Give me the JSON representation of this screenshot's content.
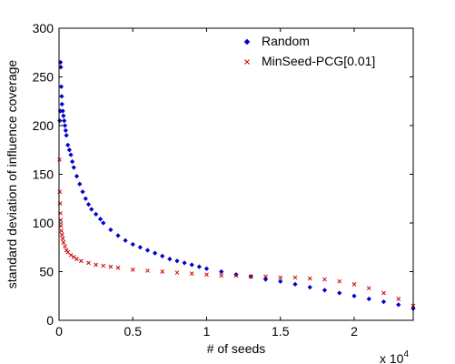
{
  "chart_data": {
    "type": "scatter",
    "title": "",
    "xlabel": "# of seeds",
    "ylabel": "standard deviation of influence coverage",
    "x_multiplier_label": "x 10",
    "x_multiplier_exp": "4",
    "xlim": [
      0,
      24000
    ],
    "ylim": [
      0,
      300
    ],
    "x_ticks": [
      0,
      5000,
      10000,
      15000,
      20000
    ],
    "x_tick_labels": [
      "0",
      "0.5",
      "1",
      "1.5",
      "2"
    ],
    "y_ticks": [
      0,
      50,
      100,
      150,
      200,
      250,
      300
    ],
    "y_tick_labels": [
      "0",
      "50",
      "100",
      "150",
      "200",
      "250",
      "300"
    ],
    "grid": false,
    "legend_position": "top-right",
    "series": [
      {
        "name": "Random",
        "color": "#0000cc",
        "marker": "diamond",
        "points": [
          [
            50,
            205
          ],
          [
            80,
            215
          ],
          [
            100,
            265
          ],
          [
            120,
            260
          ],
          [
            150,
            240
          ],
          [
            180,
            230
          ],
          [
            200,
            222
          ],
          [
            250,
            215
          ],
          [
            300,
            210
          ],
          [
            350,
            205
          ],
          [
            400,
            200
          ],
          [
            450,
            195
          ],
          [
            500,
            190
          ],
          [
            600,
            180
          ],
          [
            700,
            175
          ],
          [
            800,
            170
          ],
          [
            900,
            163
          ],
          [
            1000,
            157
          ],
          [
            1200,
            148
          ],
          [
            1400,
            140
          ],
          [
            1600,
            132
          ],
          [
            1800,
            125
          ],
          [
            2000,
            119
          ],
          [
            2200,
            114
          ],
          [
            2500,
            109
          ],
          [
            2800,
            104
          ],
          [
            3000,
            100
          ],
          [
            3500,
            93
          ],
          [
            4000,
            87
          ],
          [
            4500,
            82
          ],
          [
            5000,
            78
          ],
          [
            5500,
            75
          ],
          [
            6000,
            72
          ],
          [
            6500,
            69
          ],
          [
            7000,
            66
          ],
          [
            7500,
            63
          ],
          [
            8000,
            61
          ],
          [
            8500,
            59
          ],
          [
            9000,
            57
          ],
          [
            9500,
            55
          ],
          [
            10000,
            53
          ],
          [
            11000,
            50
          ],
          [
            12000,
            47
          ],
          [
            13000,
            45
          ],
          [
            14000,
            42
          ],
          [
            15000,
            40
          ],
          [
            16000,
            37
          ],
          [
            17000,
            34
          ],
          [
            18000,
            31
          ],
          [
            19000,
            28
          ],
          [
            20000,
            25
          ],
          [
            21000,
            22
          ],
          [
            22000,
            19
          ],
          [
            23000,
            16
          ],
          [
            24000,
            12
          ]
        ]
      },
      {
        "name": "MinSeed-PCG[0.01]",
        "color": "#cc0000",
        "marker": "x",
        "points": [
          [
            30,
            165
          ],
          [
            50,
            132
          ],
          [
            70,
            120
          ],
          [
            90,
            110
          ],
          [
            110,
            103
          ],
          [
            130,
            97
          ],
          [
            160,
            92
          ],
          [
            200,
            88
          ],
          [
            250,
            84
          ],
          [
            300,
            80
          ],
          [
            400,
            76
          ],
          [
            500,
            72
          ],
          [
            600,
            70
          ],
          [
            800,
            67
          ],
          [
            1000,
            65
          ],
          [
            1200,
            63
          ],
          [
            1500,
            61
          ],
          [
            2000,
            59
          ],
          [
            2500,
            57
          ],
          [
            3000,
            56
          ],
          [
            3500,
            55
          ],
          [
            4000,
            54
          ],
          [
            5000,
            52
          ],
          [
            6000,
            51
          ],
          [
            7000,
            50
          ],
          [
            8000,
            49
          ],
          [
            9000,
            48
          ],
          [
            10000,
            47
          ],
          [
            11000,
            46
          ],
          [
            12000,
            46
          ],
          [
            13000,
            45
          ],
          [
            14000,
            45
          ],
          [
            15000,
            44
          ],
          [
            16000,
            44
          ],
          [
            17000,
            43
          ],
          [
            18000,
            42
          ],
          [
            19000,
            40
          ],
          [
            20000,
            37
          ],
          [
            21000,
            33
          ],
          [
            22000,
            28
          ],
          [
            23000,
            22
          ],
          [
            24000,
            15
          ]
        ]
      }
    ]
  }
}
